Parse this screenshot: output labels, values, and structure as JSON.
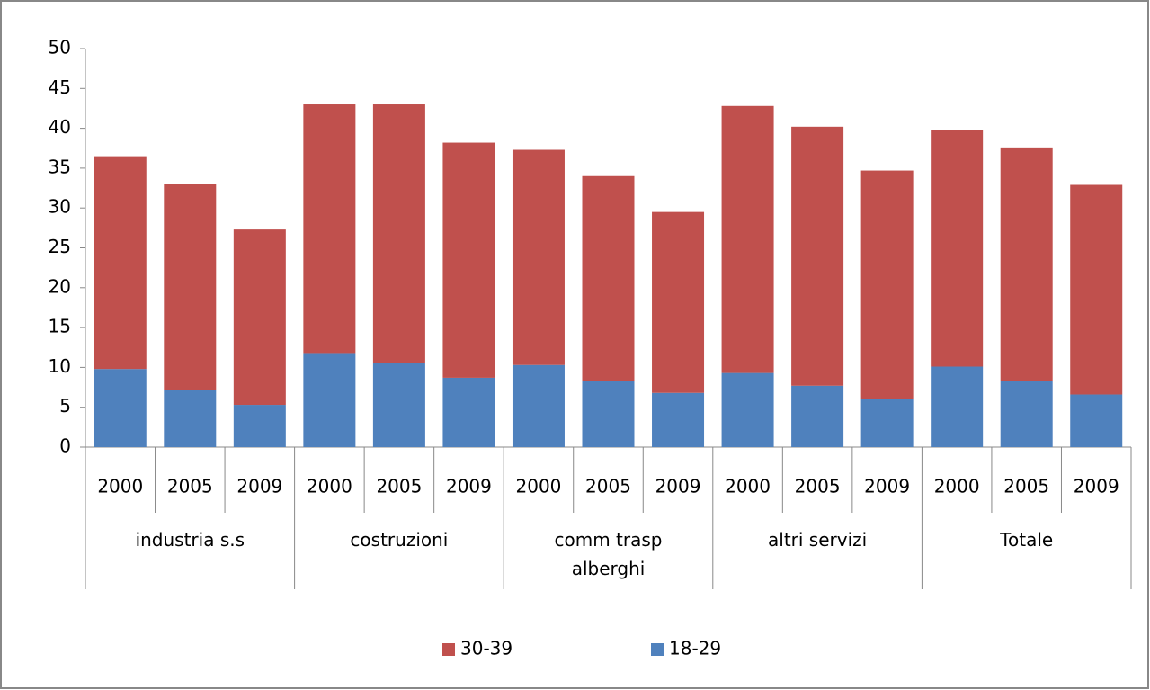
{
  "chart_data": {
    "type": "stacked_bar",
    "groups": [
      {
        "name": "industria s.s",
        "categories": [
          "2000",
          "2005",
          "2009"
        ]
      },
      {
        "name": "costruzioni",
        "categories": [
          "2000",
          "2005",
          "2009"
        ]
      },
      {
        "name": "comm trasp alberghi",
        "categories": [
          "2000",
          "2005",
          "2009"
        ]
      },
      {
        "name": "altri servizi",
        "categories": [
          "2000",
          "2005",
          "2009"
        ]
      },
      {
        "name": "Totale",
        "categories": [
          "2000",
          "2005",
          "2009"
        ]
      }
    ],
    "series": [
      {
        "name": "18-29",
        "color": "#4f81bd",
        "values": [
          9.8,
          7.2,
          5.3,
          11.8,
          10.5,
          8.7,
          10.3,
          8.3,
          6.8,
          9.3,
          7.7,
          6.0,
          10.1,
          8.3,
          6.6
        ]
      },
      {
        "name": "30-39",
        "color": "#c0504d",
        "values": [
          26.7,
          25.8,
          22.0,
          31.2,
          32.5,
          29.5,
          27.0,
          25.7,
          22.7,
          33.5,
          32.5,
          28.7,
          29.7,
          29.3,
          26.3
        ]
      }
    ],
    "ylim": [
      0,
      50
    ],
    "yticks": [
      0,
      5,
      10,
      15,
      20,
      25,
      30,
      35,
      40,
      45,
      50
    ],
    "grid": false,
    "legend": "bottom"
  }
}
